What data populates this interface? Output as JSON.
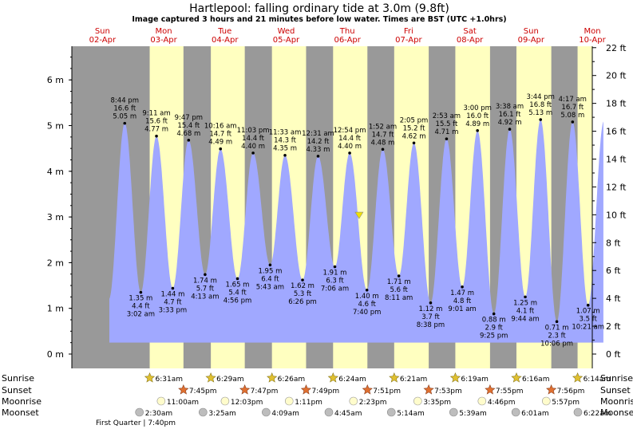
{
  "title": "Hartlepool: falling  ordinary tide at 3.0m (9.8ft)",
  "subtitle": "Image captured 3 hours and 21 minutes before low water. Times are BST (UTC +1.0hrs)",
  "colors": {
    "night": "#999999",
    "day": "#ffffc0",
    "water": "#a0a8ff",
    "day_label": "#cc0000",
    "sun_icon": "#e0c030",
    "sunset_icon": "#e07030",
    "moon_rise": "#fffccc",
    "moon_set": "#bdbdbd"
  },
  "chart_data": {
    "type": "area",
    "title": "Hartlepool: falling  ordinary tide at 3.0m (9.8ft)",
    "y_left_unit": "m",
    "y_left_ticks": [
      "0 m",
      "1 m",
      "2 m",
      "3 m",
      "4 m",
      "5 m",
      "6 m"
    ],
    "y_right_ticks": [
      "0 ft",
      "2 ft",
      "4 ft",
      "6 ft",
      "8 ft",
      "10 ft",
      "12 ft",
      "14 ft",
      "16 ft",
      "18 ft",
      "20 ft",
      "22 ft"
    ],
    "ylim_m": [
      -0.1,
      6.75
    ],
    "days": [
      {
        "name": "Sun",
        "date": "02-Apr"
      },
      {
        "name": "Mon",
        "date": "03-Apr"
      },
      {
        "name": "Tue",
        "date": "04-Apr"
      },
      {
        "name": "Wed",
        "date": "05-Apr"
      },
      {
        "name": "Thu",
        "date": "06-Apr"
      },
      {
        "name": "Fri",
        "date": "07-Apr"
      },
      {
        "name": "Sat",
        "date": "08-Apr"
      },
      {
        "name": "Sun",
        "date": "09-Apr"
      },
      {
        "name": "Mon",
        "date": "10-Apr"
      }
    ],
    "tides": [
      {
        "t": 20.73,
        "m": 5.05,
        "time": "8:44 pm",
        "ft": "16.6 ft",
        "height": "5.05 m",
        "kind": "high"
      },
      {
        "t": 27.03,
        "m": 1.35,
        "time": "3:02 am",
        "ft": "4.4 ft",
        "height": "1.35 m",
        "kind": "low"
      },
      {
        "t": 33.18,
        "m": 4.77,
        "time": "9:11 am",
        "ft": "15.6 ft",
        "height": "4.77 m",
        "kind": "high"
      },
      {
        "t": 39.55,
        "m": 1.44,
        "time": "3:33 pm",
        "ft": "4.7 ft",
        "height": "1.44 m",
        "kind": "low"
      },
      {
        "t": 45.78,
        "m": 4.68,
        "time": "9:47 pm",
        "ft": "15.4 ft",
        "height": "4.68 m",
        "kind": "high"
      },
      {
        "t": 52.22,
        "m": 1.74,
        "time": "4:13 am",
        "ft": "5.7 ft",
        "height": "1.74 m",
        "kind": "low"
      },
      {
        "t": 58.27,
        "m": 4.49,
        "time": "10:16 am",
        "ft": "14.7 ft",
        "height": "4.49 m",
        "kind": "high"
      },
      {
        "t": 64.93,
        "m": 1.65,
        "time": "4:56 pm",
        "ft": "5.4 ft",
        "height": "1.65 m",
        "kind": "low"
      },
      {
        "t": 71.05,
        "m": 4.4,
        "time": "11:03 pm",
        "ft": "14.4 ft",
        "height": "4.40 m",
        "kind": "high"
      },
      {
        "t": 77.72,
        "m": 1.95,
        "time": "5:43 am",
        "ft": "6.4 ft",
        "height": "1.95 m",
        "kind": "low"
      },
      {
        "t": 83.55,
        "m": 4.35,
        "time": "11:33 am",
        "ft": "14.3 ft",
        "height": "4.35 m",
        "kind": "high"
      },
      {
        "t": 90.43,
        "m": 1.62,
        "time": "6:26 pm",
        "ft": "5.3 ft",
        "height": "1.62 m",
        "kind": "low"
      },
      {
        "t": 96.52,
        "m": 4.33,
        "time": "12:31 am",
        "ft": "14.2 ft",
        "height": "4.33 m",
        "kind": "high"
      },
      {
        "t": 103.1,
        "m": 1.91,
        "time": "7:06 am",
        "ft": "6.3 ft",
        "height": "1.91 m",
        "kind": "low"
      },
      {
        "t": 108.9,
        "m": 4.4,
        "time": "12:54 pm",
        "ft": "14.4 ft",
        "height": "4.40 m",
        "kind": "high"
      },
      {
        "t": 115.67,
        "m": 1.4,
        "time": "7:40 pm",
        "ft": "4.6 ft",
        "height": "1.40 m",
        "kind": "low"
      },
      {
        "t": 121.87,
        "m": 4.48,
        "time": "1:52 am",
        "ft": "14.7 ft",
        "height": "4.48 m",
        "kind": "high"
      },
      {
        "t": 128.18,
        "m": 1.71,
        "time": "8:11 am",
        "ft": "5.6 ft",
        "height": "1.71 m",
        "kind": "low"
      },
      {
        "t": 134.08,
        "m": 4.62,
        "time": "2:05 pm",
        "ft": "15.2 ft",
        "height": "4.62 m",
        "kind": "high"
      },
      {
        "t": 140.63,
        "m": 1.12,
        "time": "8:38 pm",
        "ft": "3.7 ft",
        "height": "1.12 m",
        "kind": "low"
      },
      {
        "t": 146.88,
        "m": 4.71,
        "time": "2:53 am",
        "ft": "15.5 ft",
        "height": "4.71 m",
        "kind": "high"
      },
      {
        "t": 153.02,
        "m": 1.47,
        "time": "9:01 am",
        "ft": "4.8 ft",
        "height": "1.47 m",
        "kind": "low"
      },
      {
        "t": 159.0,
        "m": 4.89,
        "time": "3:00 pm",
        "ft": "16.0 ft",
        "height": "4.89 m",
        "kind": "high"
      },
      {
        "t": 165.42,
        "m": 0.88,
        "time": "9:25 pm",
        "ft": "2.9 ft",
        "height": "0.88 m",
        "kind": "low"
      },
      {
        "t": 171.63,
        "m": 4.92,
        "time": "3:38 am",
        "ft": "16.1 ft",
        "height": "4.92 m",
        "kind": "high"
      },
      {
        "t": 177.73,
        "m": 1.25,
        "time": "9:44 am",
        "ft": "4.1 ft",
        "height": "1.25 m",
        "kind": "low"
      },
      {
        "t": 183.73,
        "m": 5.13,
        "time": "3:44 pm",
        "ft": "16.8 ft",
        "height": "5.13 m",
        "kind": "high"
      },
      {
        "t": 190.1,
        "m": 0.71,
        "time": "10:06 pm",
        "ft": "2.3 ft",
        "height": "0.71 m",
        "kind": "low"
      },
      {
        "t": 196.28,
        "m": 5.08,
        "time": "4:17 am",
        "ft": "16.7 ft",
        "height": "5.08 m",
        "kind": "high"
      },
      {
        "t": 202.35,
        "m": 1.07,
        "time": "10:21 am",
        "ft": "3.5 ft",
        "height": "1.07 m",
        "kind": "low"
      }
    ],
    "current": {
      "t": 112.6,
      "m": 3.0
    },
    "sunrise": [
      "6:31am",
      "6:29am",
      "6:26am",
      "6:24am",
      "6:21am",
      "6:19am",
      "6:16am",
      "6:14am"
    ],
    "sunset": [
      "7:45pm",
      "7:47pm",
      "7:49pm",
      "7:51pm",
      "7:53pm",
      "7:55pm",
      "7:56pm"
    ],
    "moonrise": [
      "11:00am",
      "12:03pm",
      "1:11pm",
      "2:23pm",
      "3:35pm",
      "4:46pm",
      "5:57pm"
    ],
    "moonset": [
      "2:30am",
      "3:25am",
      "4:09am",
      "4:45am",
      "5:14am",
      "5:39am",
      "6:01am",
      "6:22am"
    ],
    "moon_phase": "First Quarter | 7:40pm"
  },
  "rows": {
    "sunrise": "Sunrise",
    "sunset": "Sunset",
    "moonrise": "Moonrise",
    "moonset": "Moonset"
  }
}
